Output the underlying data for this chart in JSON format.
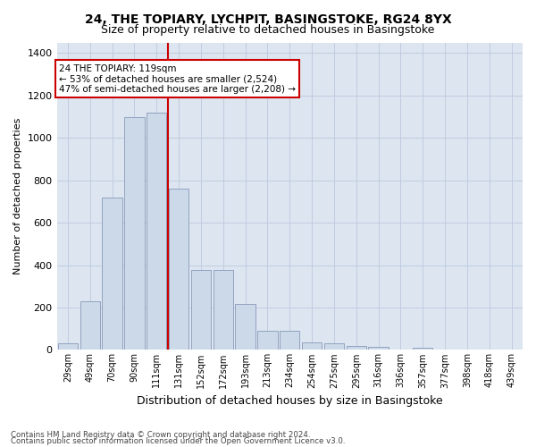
{
  "title1": "24, THE TOPIARY, LYCHPIT, BASINGSTOKE, RG24 8YX",
  "title2": "Size of property relative to detached houses in Basingstoke",
  "xlabel": "Distribution of detached houses by size in Basingstoke",
  "ylabel": "Number of detached properties",
  "categories": [
    "29sqm",
    "49sqm",
    "70sqm",
    "90sqm",
    "111sqm",
    "131sqm",
    "152sqm",
    "172sqm",
    "193sqm",
    "213sqm",
    "234sqm",
    "254sqm",
    "275sqm",
    "295sqm",
    "316sqm",
    "336sqm",
    "357sqm",
    "377sqm",
    "398sqm",
    "418sqm",
    "439sqm"
  ],
  "values": [
    30,
    230,
    720,
    1100,
    1120,
    760,
    375,
    375,
    215,
    90,
    90,
    35,
    30,
    20,
    15,
    0,
    12,
    0,
    0,
    0,
    0
  ],
  "bar_color": "#ccd9e8",
  "bar_edge_color": "#8899bb",
  "redline_x": 4.5,
  "annotation_text": "24 THE TOPIARY: 119sqm\n← 53% of detached houses are smaller (2,524)\n47% of semi-detached houses are larger (2,208) →",
  "annotation_box_color": "#ffffff",
  "annotation_box_edge": "#cc0000",
  "redline_color": "#cc0000",
  "ylim": [
    0,
    1450
  ],
  "yticks": [
    0,
    200,
    400,
    600,
    800,
    1000,
    1200,
    1400
  ],
  "grid_color": "#c0cce0",
  "bg_color": "#dde6f0",
  "footer1": "Contains HM Land Registry data © Crown copyright and database right 2024.",
  "footer2": "Contains public sector information licensed under the Open Government Licence v3.0."
}
